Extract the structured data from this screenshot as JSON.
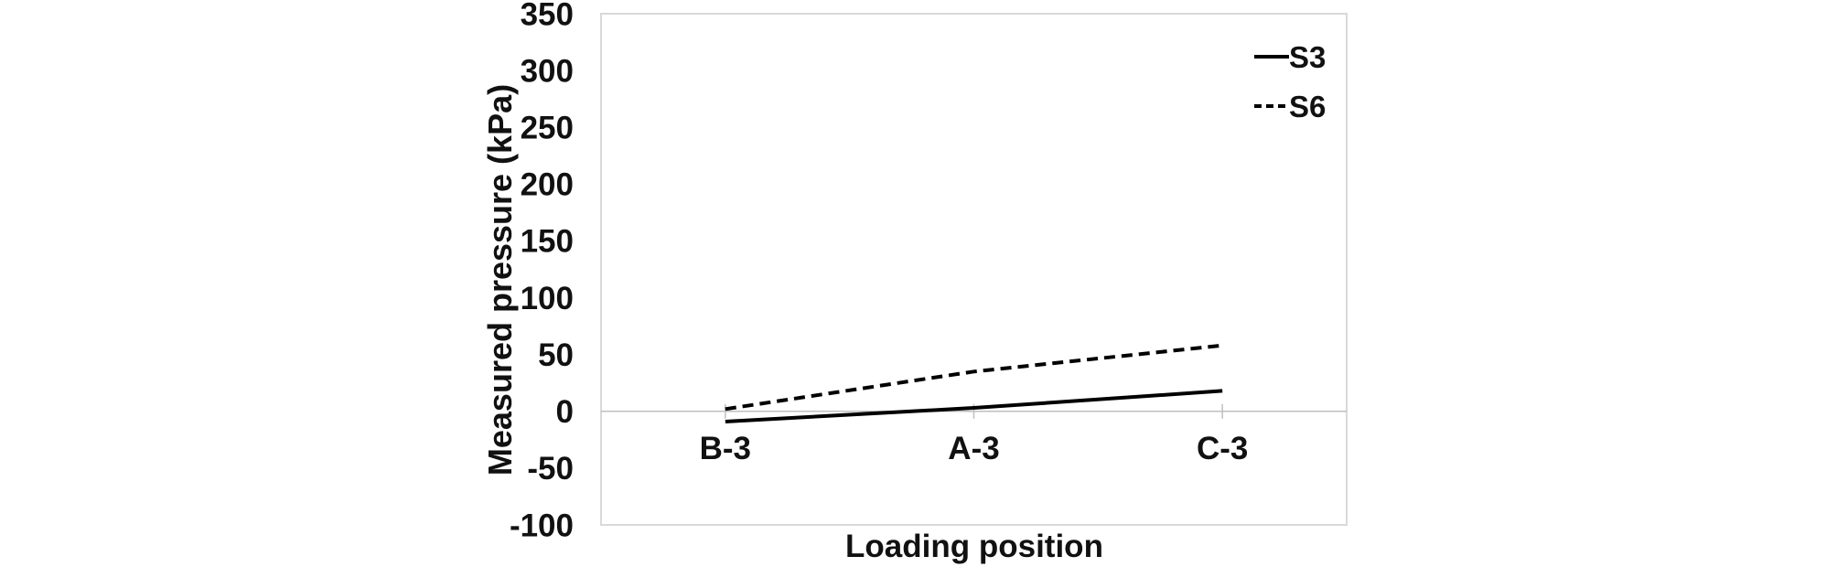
{
  "chart_data": {
    "type": "line",
    "title": "",
    "xlabel": "Loading position",
    "ylabel": "Measured pressure (kPa)",
    "categories": [
      "B-3",
      "A-3",
      "C-3"
    ],
    "series": [
      {
        "name": "S3",
        "style": "solid",
        "color": "#000000",
        "values": [
          -9,
          3,
          18
        ]
      },
      {
        "name": "S6",
        "style": "dashed",
        "color": "#000000",
        "values": [
          2,
          35,
          58
        ]
      }
    ],
    "ylim": [
      -100,
      350
    ],
    "ytick_step": 50,
    "grid": false,
    "legend_position": "top-right-inside",
    "axis_color": "#bfbfbf",
    "border_color": "#d9d9d9",
    "text_color": "#111111"
  }
}
